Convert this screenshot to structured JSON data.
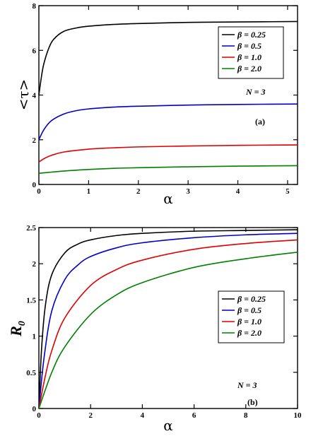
{
  "chart_data": [
    {
      "id": "a",
      "type": "line",
      "panel_label": "(a)",
      "annotation": "N = 3",
      "xlabel": "α",
      "ylabel": "<τ>",
      "xlim": [
        0,
        5.2
      ],
      "ylim": [
        0,
        8
      ],
      "xticks": [
        0,
        1,
        2,
        3,
        4,
        5
      ],
      "xtick_labels": [
        "0",
        "1",
        "2",
        "3",
        "4",
        "5"
      ],
      "yticks": [
        0,
        2,
        4,
        6,
        8
      ],
      "ytick_labels": [
        "0",
        "2",
        "4",
        "6",
        "8"
      ],
      "legend_position": "top-right",
      "grid": false,
      "series": [
        {
          "name": "β = 0.25",
          "color": "#000000",
          "x": [
            0,
            0.05,
            0.1,
            0.2,
            0.3,
            0.5,
            0.75,
            1.0,
            1.5,
            2.0,
            3.0,
            4.0,
            5.2
          ],
          "y": [
            4.0,
            4.8,
            5.4,
            6.1,
            6.5,
            6.85,
            7.0,
            7.08,
            7.16,
            7.2,
            7.25,
            7.27,
            7.29
          ]
        },
        {
          "name": "β = 0.5",
          "color": "#0000cc",
          "x": [
            0,
            0.1,
            0.25,
            0.5,
            0.75,
            1.0,
            1.5,
            2.0,
            3.0,
            4.0,
            5.2
          ],
          "y": [
            2.0,
            2.45,
            2.85,
            3.15,
            3.3,
            3.38,
            3.46,
            3.5,
            3.55,
            3.58,
            3.6
          ]
        },
        {
          "name": "β = 1.0",
          "color": "#e00000",
          "x": [
            0,
            0.1,
            0.25,
            0.5,
            1.0,
            1.5,
            2.0,
            3.0,
            4.0,
            5.2
          ],
          "y": [
            1.0,
            1.15,
            1.3,
            1.45,
            1.58,
            1.64,
            1.68,
            1.72,
            1.75,
            1.77
          ]
        },
        {
          "name": "β = 2.0",
          "color": "#008000",
          "x": [
            0,
            0.5,
            1.0,
            1.5,
            2.0,
            3.0,
            4.0,
            5.2
          ],
          "y": [
            0.5,
            0.6,
            0.67,
            0.72,
            0.75,
            0.79,
            0.82,
            0.84
          ]
        }
      ]
    },
    {
      "id": "b",
      "type": "line",
      "panel_label": "(b)",
      "annotation": "N = 3",
      "xlabel": "α",
      "ylabel": "R0",
      "xlim": [
        0,
        10
      ],
      "ylim": [
        0,
        2.5
      ],
      "xticks": [
        0,
        2,
        4,
        6,
        8,
        10
      ],
      "xtick_labels": [
        "0",
        "2",
        "4",
        "6",
        "8",
        "10"
      ],
      "yticks": [
        0,
        0.5,
        1,
        1.5,
        2,
        2.5
      ],
      "ytick_labels": [
        "0",
        "0.5",
        "1",
        "1.5",
        "2",
        "2.5"
      ],
      "legend_position": "center-right",
      "grid": false,
      "series": [
        {
          "name": "β = 0.25",
          "color": "#000000",
          "x": [
            0,
            0.1,
            0.25,
            0.5,
            1,
            1.5,
            2,
            3,
            4,
            6,
            8,
            10
          ],
          "y": [
            0,
            0.8,
            1.42,
            1.85,
            2.15,
            2.27,
            2.33,
            2.39,
            2.42,
            2.45,
            2.46,
            2.47
          ]
        },
        {
          "name": "β = 0.5",
          "color": "#0000cc",
          "x": [
            0,
            0.2,
            0.5,
            1,
            1.5,
            2,
            3,
            4,
            6,
            8,
            10
          ],
          "y": [
            0,
            0.7,
            1.35,
            1.78,
            1.98,
            2.1,
            2.22,
            2.29,
            2.36,
            2.4,
            2.42
          ]
        },
        {
          "name": "β = 1.0",
          "color": "#e00000",
          "x": [
            0,
            0.25,
            0.5,
            1,
            2,
            3,
            4,
            6,
            8,
            10
          ],
          "y": [
            0,
            0.45,
            0.8,
            1.25,
            1.7,
            1.92,
            2.05,
            2.2,
            2.28,
            2.33
          ]
        },
        {
          "name": "β = 2.0",
          "color": "#008000",
          "x": [
            0,
            0.5,
            1,
            2,
            3,
            4,
            6,
            8,
            10
          ],
          "y": [
            0,
            0.5,
            0.85,
            1.3,
            1.57,
            1.74,
            1.95,
            2.07,
            2.16
          ]
        }
      ]
    }
  ]
}
